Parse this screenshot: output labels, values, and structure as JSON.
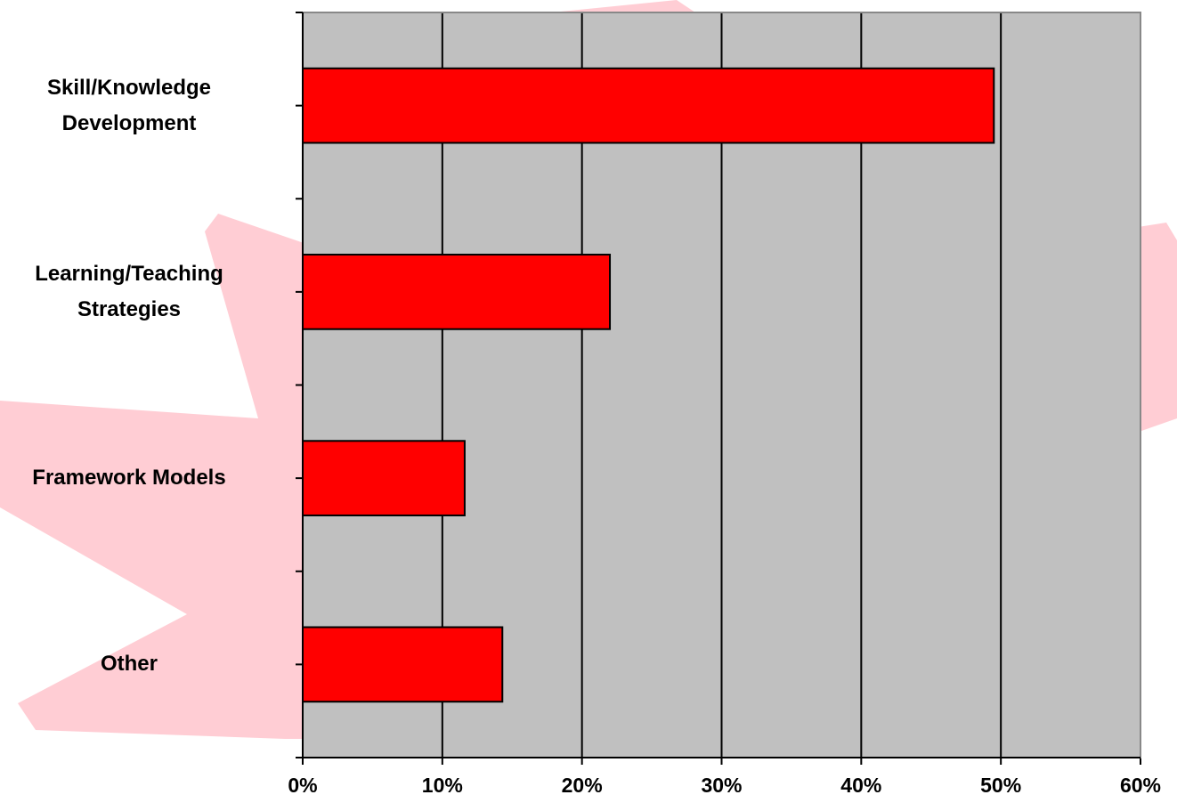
{
  "chart_data": {
    "type": "barh",
    "categories": [
      "Skill/Knowledge\nDevelopment",
      "Learning/Teaching\nStrategies",
      "Framework Models",
      "Other"
    ],
    "values": [
      49.5,
      22.0,
      11.6,
      14.3
    ],
    "color": "#ff0000",
    "xlim": [
      0,
      60
    ],
    "xticks": [
      {
        "value": 0,
        "label": "0%"
      },
      {
        "value": 10,
        "label": "10%"
      },
      {
        "value": 20,
        "label": "20%"
      },
      {
        "value": 30,
        "label": "30%"
      },
      {
        "value": 40,
        "label": "40%"
      },
      {
        "value": 50,
        "label": "50%"
      },
      {
        "value": 60,
        "label": "60%"
      }
    ],
    "grid": true
  }
}
